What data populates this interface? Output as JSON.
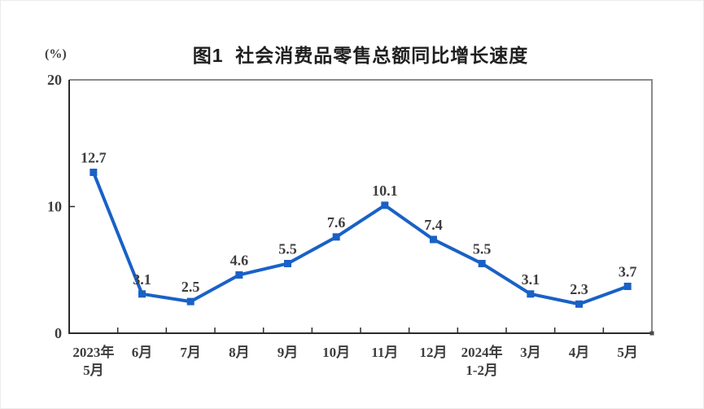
{
  "page": {
    "background_color": "#ffffff",
    "edge_border_color": "#ececec"
  },
  "chart_data": {
    "type": "line",
    "title": "图1  社会消费品零售总额同比增长速度",
    "unit_label": "(%)",
    "categories": [
      "2023年\n5月",
      "6月",
      "7月",
      "8月",
      "9月",
      "10月",
      "11月",
      "12月",
      "2024年\n1-2月",
      "3月",
      "4月",
      "5月"
    ],
    "values": [
      12.7,
      3.1,
      2.5,
      4.6,
      5.5,
      7.6,
      10.1,
      7.4,
      5.5,
      3.1,
      2.3,
      3.7
    ],
    "y_ticks": [
      0,
      10,
      20
    ],
    "ylim": [
      0,
      20
    ],
    "grid": false,
    "legend_position": "none",
    "marker_shape": "square",
    "line_color": "#1961c6",
    "marker_color": "#1961c6",
    "axis_color": "#2b2b2b",
    "frame_color": "#8a8a8a",
    "text_color": "#3d3d3d"
  }
}
